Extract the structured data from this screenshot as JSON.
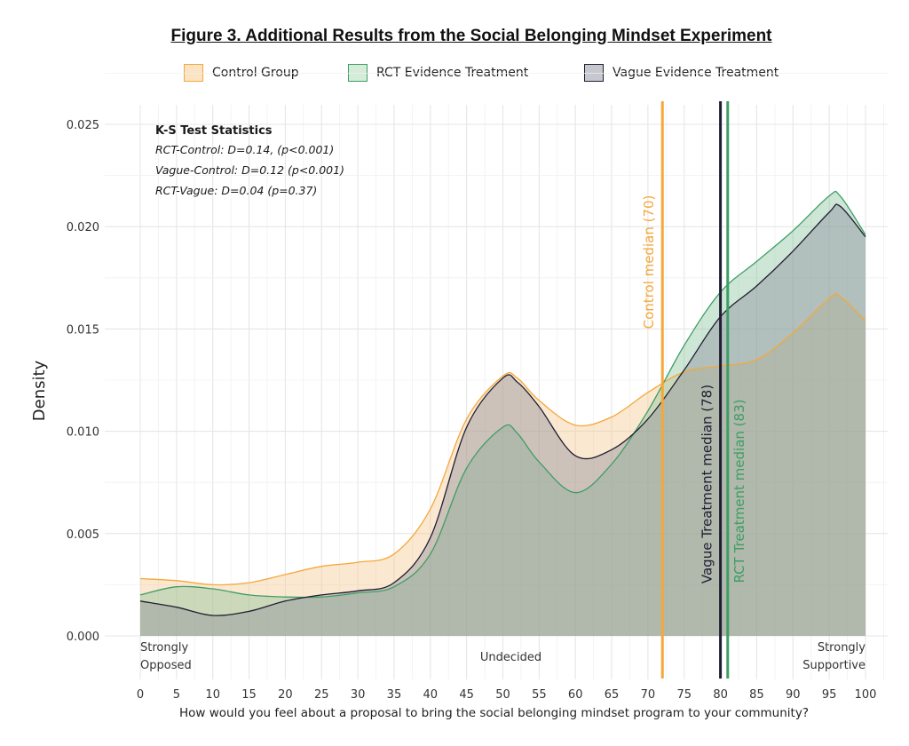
{
  "title": "Figure 3. Additional Results from the Social Belonging Mindset Experiment",
  "legend": [
    {
      "name": "Control Group",
      "color": "#F4A83A",
      "fill": "#FBE3C4"
    },
    {
      "name": "RCT Evidence Treatment",
      "color": "#3E9E64",
      "fill": "#D5ECD9"
    },
    {
      "name": "Vague Evidence Treatment",
      "color": "#1E1E32",
      "fill": "#C7C8CF"
    }
  ],
  "chart_data": {
    "type": "area",
    "title": "Figure 3. Additional Results from the Social Belonging Mindset Experiment",
    "xlabel": "How would you feel about a proposal to bring the social belonging mindset program to your community?",
    "ylabel": "Density",
    "xlim": [
      0,
      100
    ],
    "ylim": [
      0,
      0.025
    ],
    "x_ticks": [
      0,
      5,
      10,
      15,
      20,
      25,
      30,
      35,
      40,
      45,
      50,
      55,
      60,
      65,
      70,
      75,
      80,
      85,
      90,
      95,
      100
    ],
    "y_ticks": [
      "0.000",
      "0.005",
      "0.010",
      "0.015",
      "0.020",
      "0.025"
    ],
    "grid": true,
    "legend_position": "top",
    "x": [
      0,
      5,
      10,
      15,
      20,
      25,
      30,
      35,
      40,
      45,
      50,
      52,
      55,
      60,
      65,
      70,
      75,
      80,
      85,
      90,
      95,
      96.5,
      100
    ],
    "series": [
      {
        "name": "Control Group",
        "color": "#F4A83A",
        "values": [
          0.0028,
          0.0027,
          0.0025,
          0.0026,
          0.003,
          0.0034,
          0.0036,
          0.004,
          0.0062,
          0.0106,
          0.0127,
          0.0126,
          0.0115,
          0.0103,
          0.0107,
          0.0119,
          0.0129,
          0.0132,
          0.0135,
          0.0148,
          0.0165,
          0.0166,
          0.0154
        ]
      },
      {
        "name": "RCT Evidence Treatment",
        "color": "#3E9E64",
        "values": [
          0.002,
          0.0024,
          0.0023,
          0.002,
          0.0019,
          0.0019,
          0.0021,
          0.0024,
          0.004,
          0.0082,
          0.0102,
          0.0099,
          0.0085,
          0.007,
          0.0084,
          0.011,
          0.0142,
          0.0168,
          0.0183,
          0.0198,
          0.0215,
          0.0215,
          0.0196
        ]
      },
      {
        "name": "Vague Evidence Treatment",
        "color": "#1E1E32",
        "values": [
          0.0017,
          0.0014,
          0.001,
          0.0012,
          0.0017,
          0.002,
          0.0022,
          0.0026,
          0.0048,
          0.0102,
          0.0126,
          0.0124,
          0.0112,
          0.0088,
          0.0091,
          0.0106,
          0.013,
          0.0156,
          0.0171,
          0.0188,
          0.0207,
          0.021,
          0.0195
        ]
      }
    ],
    "medians": [
      {
        "label": "Control median (70)",
        "x": 72,
        "color": "#F4A83A"
      },
      {
        "label": "Vague Treatment median (78)",
        "x": 80,
        "color": "#1E1E32"
      },
      {
        "label": "RCT Treatment median (83)",
        "x": 81,
        "color": "#3E9E64"
      }
    ],
    "scale_labels": [
      {
        "lines": [
          "Strongly",
          "Opposed"
        ],
        "x": 0,
        "align": "start"
      },
      {
        "lines": [
          "Undecided"
        ],
        "x": 50,
        "align": "middle"
      },
      {
        "lines": [
          "Strongly",
          "Supportive"
        ],
        "x": 100,
        "align": "end"
      }
    ],
    "annotation": {
      "heading": "K-S Test Statistics",
      "lines": [
        "RCT-Control: D=0.14, (p<0.001)",
        "Vague-Control: D=0.12 (p<0.001)",
        "RCT-Vague: D=0.04 (p=0.37)"
      ]
    }
  }
}
